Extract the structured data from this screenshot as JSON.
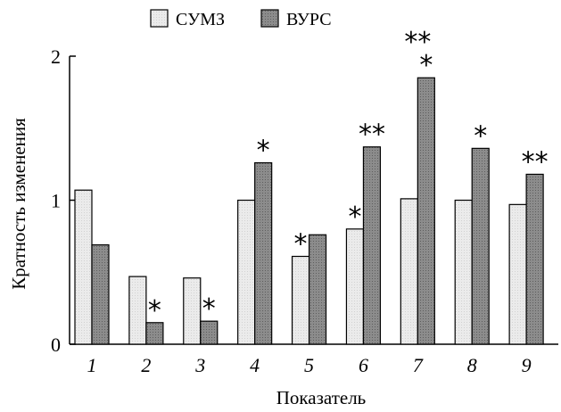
{
  "chart_data": {
    "type": "bar",
    "title": "",
    "xlabel": "Показатель",
    "ylabel": "Кратность изменения",
    "ylim": [
      0,
      2
    ],
    "yticks": [
      0,
      1,
      2
    ],
    "categories": [
      "1",
      "2",
      "3",
      "4",
      "5",
      "6",
      "7",
      "8",
      "9"
    ],
    "series": [
      {
        "name": "СУМЗ",
        "color": "#ebebeb",
        "values": [
          1.07,
          0.47,
          0.46,
          1.0,
          0.61,
          0.8,
          1.01,
          1.0,
          0.97
        ],
        "significance": [
          "",
          "",
          "",
          "",
          "*",
          "*",
          "",
          "",
          ""
        ]
      },
      {
        "name": "ВУРС",
        "color": "#8c8c8c",
        "values": [
          0.69,
          0.15,
          0.16,
          1.26,
          0.76,
          1.37,
          1.85,
          1.36,
          1.18
        ],
        "significance": [
          "",
          "*",
          "*",
          "*",
          "",
          "**",
          "*",
          "*",
          "**"
        ]
      }
    ],
    "extra_annotations": [
      {
        "category": "7",
        "text": "**"
      }
    ],
    "legend": "top-center",
    "grid": false
  }
}
